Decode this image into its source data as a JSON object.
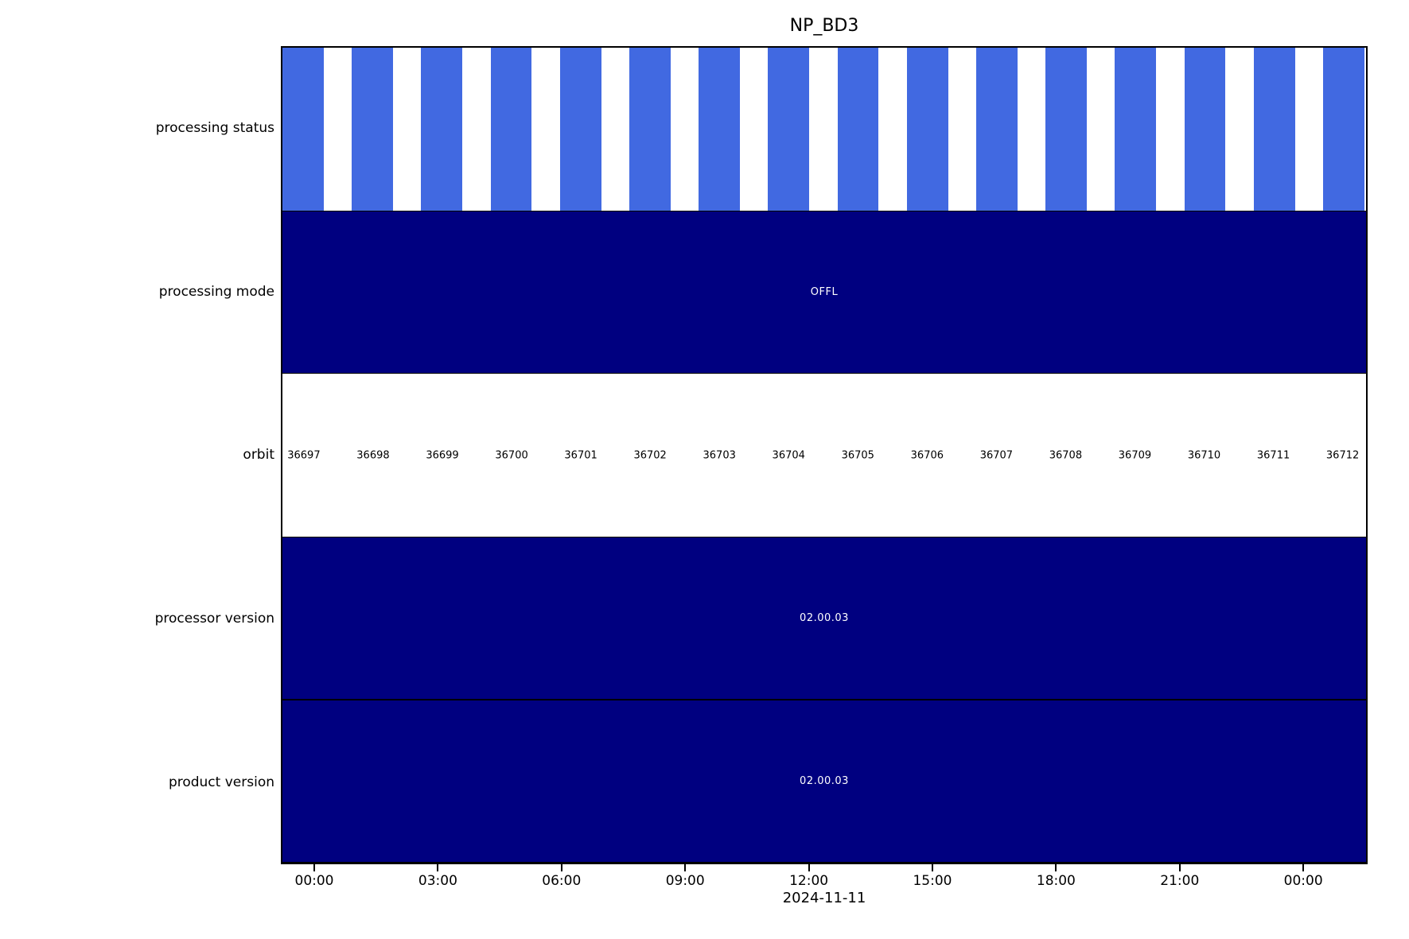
{
  "title": "NP_BD3",
  "colors": {
    "status_bar_blue": "#4169e1",
    "block_navy": "#000080",
    "text_on_navy": "#ffffff",
    "background": "#ffffff",
    "frame": "#000000"
  },
  "rows": [
    {
      "label": "processing status",
      "type": "striped_bars"
    },
    {
      "label": "processing mode",
      "type": "block",
      "value": "OFFL"
    },
    {
      "label": "orbit",
      "type": "labels"
    },
    {
      "label": "processor version",
      "type": "block",
      "value": "02.00.03"
    },
    {
      "label": "product version",
      "type": "block",
      "value": "02.00.03"
    }
  ],
  "orbits": [
    36697,
    36698,
    36699,
    36700,
    36701,
    36702,
    36703,
    36704,
    36705,
    36706,
    36707,
    36708,
    36709,
    36710,
    36711,
    36712
  ],
  "x_axis": {
    "tick_labels": [
      "00:00",
      "03:00",
      "06:00",
      "09:00",
      "12:00",
      "15:00",
      "18:00",
      "21:00",
      "00:00"
    ],
    "date_label": "2024-11-11"
  },
  "chart_data": {
    "type": "bar",
    "subtype": "product-timeline-status",
    "title": "NP_BD3",
    "date": "2024-11-11",
    "x": {
      "tick_labels": [
        "00:00",
        "03:00",
        "06:00",
        "09:00",
        "12:00",
        "15:00",
        "18:00",
        "21:00",
        "00:00"
      ],
      "tick_interval_hours": 3,
      "range_note": "spans 16 consecutive orbits across 2024-11-11"
    },
    "rows": [
      {
        "label": "processing status",
        "type": "striped_bars",
        "bar_color": "#4169e1",
        "bar_count": 16,
        "bar_duty_fraction": 0.6,
        "note": "one blue bar per orbit, evenly spaced, full row height"
      },
      {
        "label": "processing mode",
        "type": "block",
        "value": "OFFL",
        "fill_color": "#000080",
        "text_color": "#ffffff"
      },
      {
        "label": "orbit",
        "type": "labels",
        "values": [
          36697,
          36698,
          36699,
          36700,
          36701,
          36702,
          36703,
          36704,
          36705,
          36706,
          36707,
          36708,
          36709,
          36710,
          36711,
          36712
        ],
        "fill_color": "#ffffff",
        "text_color": "#000000"
      },
      {
        "label": "processor version",
        "type": "block",
        "value": "02.00.03",
        "fill_color": "#000080",
        "text_color": "#ffffff"
      },
      {
        "label": "product version",
        "type": "block",
        "value": "02.00.03",
        "fill_color": "#000080",
        "text_color": "#ffffff"
      }
    ],
    "legend": "none",
    "grid": "off"
  }
}
